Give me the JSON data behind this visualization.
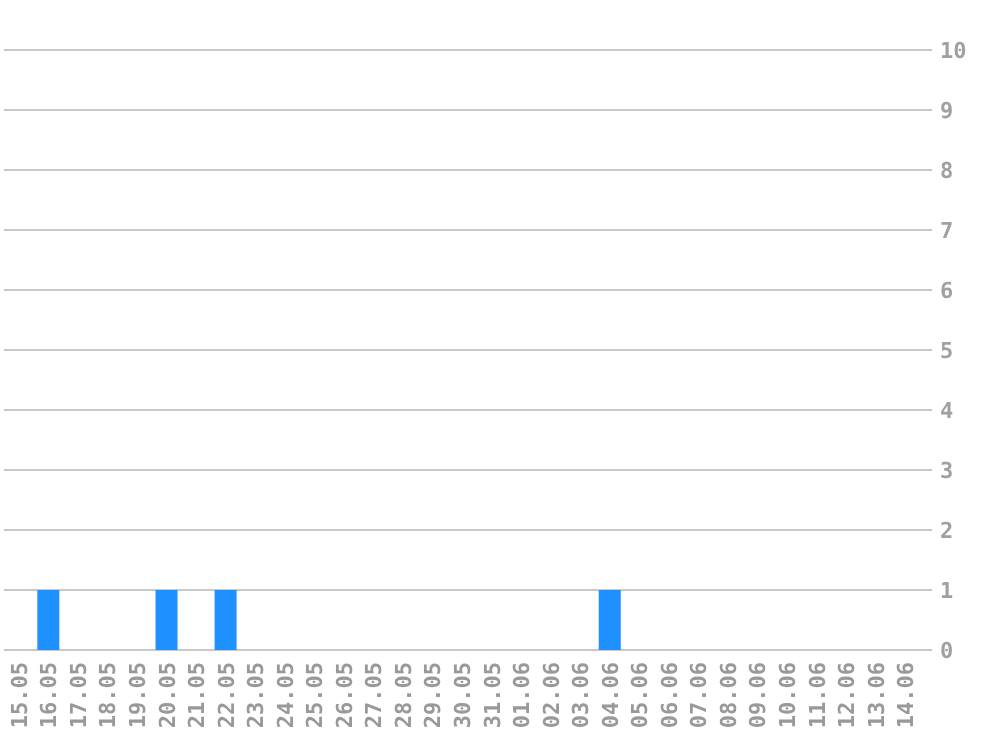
{
  "chart_data": {
    "type": "bar",
    "categories": [
      "15.05",
      "16.05",
      "17.05",
      "18.05",
      "19.05",
      "20.05",
      "21.05",
      "22.05",
      "23.05",
      "24.05",
      "25.05",
      "26.05",
      "27.05",
      "28.05",
      "29.05",
      "30.05",
      "31.05",
      "01.06",
      "02.06",
      "03.06",
      "04.06",
      "05.06",
      "06.06",
      "07.06",
      "08.06",
      "09.06",
      "10.06",
      "11.06",
      "12.06",
      "13.06",
      "14.06"
    ],
    "values": [
      0,
      1,
      0,
      0,
      0,
      1,
      0,
      1,
      0,
      0,
      0,
      0,
      0,
      0,
      0,
      0,
      0,
      0,
      0,
      0,
      1,
      0,
      0,
      0,
      0,
      0,
      0,
      0,
      0,
      0,
      0
    ],
    "color": "#1e90ff",
    "ylim": [
      0,
      10
    ],
    "yticks": [
      0,
      1,
      2,
      3,
      4,
      5,
      6,
      7,
      8,
      9,
      10
    ],
    "grid": "y"
  }
}
